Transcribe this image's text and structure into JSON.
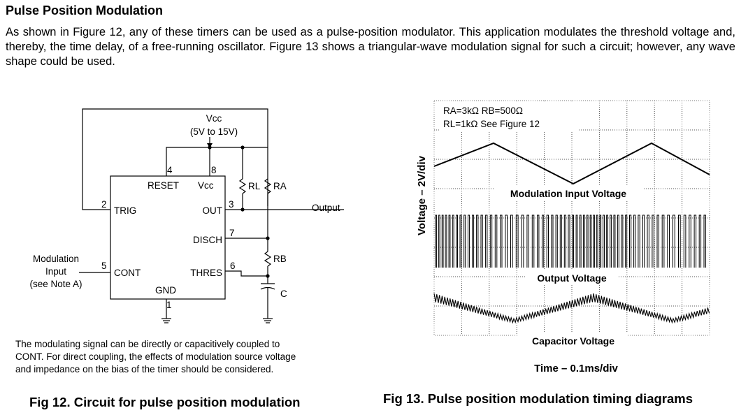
{
  "heading": "Pulse Position Modulation",
  "intro": "As shown in Figure 12, any of these timers can be used as a pulse-position modulator. This application modulates the threshold voltage and, thereby, the time delay, of a free-running oscillator. Figure 13 shows a triangular-wave modulation signal for such a circuit; however, any wave shape could be used.",
  "circuit": {
    "vcc": "Vcc",
    "vcc_range": "(5V to 15V)",
    "pins": {
      "p1": "1",
      "p2": "2",
      "p3": "3",
      "p4": "4",
      "p5": "5",
      "p6": "6",
      "p7": "7",
      "p8": "8"
    },
    "reset": "RESET",
    "vcc_pin": "Vcc",
    "trig": "TRIG",
    "out": "OUT",
    "disch": "DISCH",
    "cont": "CONT",
    "thres": "THRES",
    "gnd": "GND",
    "rl": "RL",
    "ra": "RA",
    "rb": "RB",
    "c": "C",
    "output": "Output",
    "mod_input": [
      "Modulation",
      "Input",
      "(see Note A)"
    ],
    "note": [
      "The modulating signal can be directly or capacitively coupled to",
      "CONT. For direct coupling, the effects of modulation source voltage",
      "and impedance on the bias of the timer should be considered."
    ]
  },
  "timing": {
    "params_line1": "RA=3kΩ  RB=500Ω",
    "params_line2": "RL=1kΩ  See Figure 12",
    "ylabel": "Voltage – 2V/div",
    "xlabel": "Time – 0.1ms/div",
    "trace_modulation": "Modulation Input Voltage",
    "trace_output": "Output Voltage",
    "trace_capacitor": "Capacitor Voltage"
  },
  "captions": {
    "fig12": "Fig 12. Circuit for pulse position modulation",
    "fig13": "Fig 13. Pulse position modulation timing diagrams"
  }
}
